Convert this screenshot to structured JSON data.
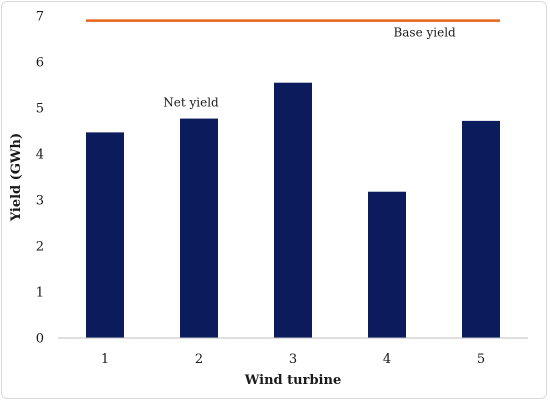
{
  "chart_data": {
    "type": "bar",
    "categories": [
      "1",
      "2",
      "3",
      "4",
      "5"
    ],
    "series": [
      {
        "name": "Net yield",
        "values": [
          4.47,
          4.77,
          5.55,
          3.18,
          4.72
        ],
        "color": "#0b1b5c"
      }
    ],
    "reference_line": {
      "name": "Base yield",
      "value": 6.9,
      "color": "#e8641c"
    },
    "title": "",
    "xlabel": "Wind turbine",
    "ylabel": "Yield (GWh)",
    "ylim": [
      0,
      7
    ],
    "yticks": [
      "0",
      "1",
      "2",
      "3",
      "4",
      "5",
      "6",
      "7"
    ],
    "grid": false,
    "legend": "none"
  }
}
